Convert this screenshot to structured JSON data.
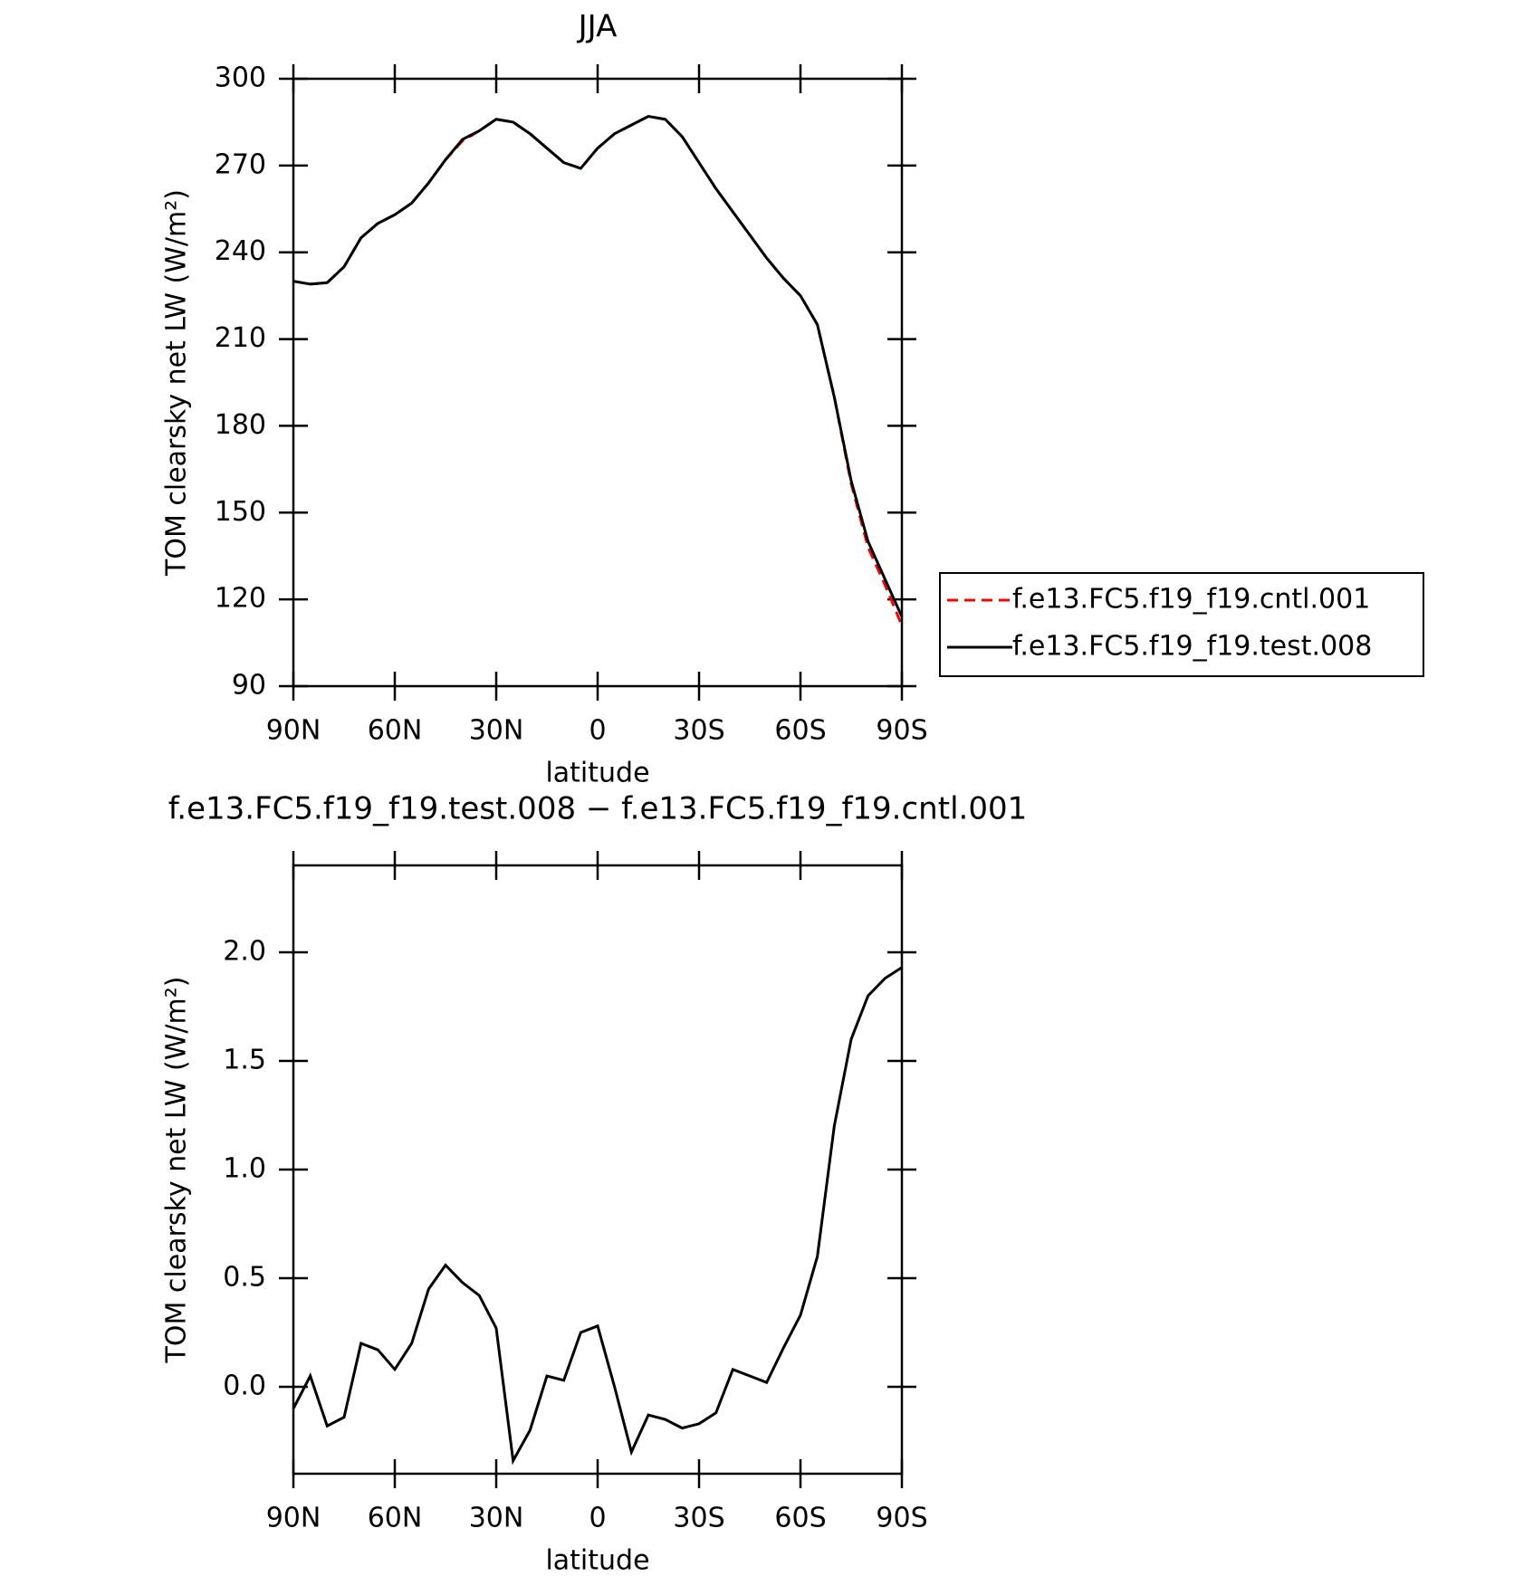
{
  "chart_data": [
    {
      "type": "line",
      "title": "JJA",
      "xlabel": "latitude",
      "ylabel": "TOM clearsky net LW (W/m²)",
      "x": [
        90,
        85,
        80,
        75,
        70,
        65,
        60,
        55,
        50,
        45,
        40,
        35,
        30,
        25,
        20,
        15,
        10,
        5,
        0,
        -5,
        -10,
        -15,
        -20,
        -25,
        -30,
        -35,
        -40,
        -45,
        -50,
        -55,
        -60,
        -65,
        -70,
        -75,
        -80,
        -85,
        -90
      ],
      "xlim": [
        90,
        -90
      ],
      "xticks": [
        {
          "value": 90,
          "label": "90N"
        },
        {
          "value": 60,
          "label": "60N"
        },
        {
          "value": 30,
          "label": "30N"
        },
        0,
        {
          "value": -30,
          "label": "30S"
        },
        {
          "value": -60,
          "label": "60S"
        },
        {
          "value": -90,
          "label": "90S"
        }
      ],
      "ylim": [
        90,
        300
      ],
      "yticks": [
        90,
        120,
        150,
        180,
        210,
        240,
        270,
        300
      ],
      "legend": "outside-right",
      "series": [
        {
          "name": "f.e13.FC5.f19_f19.cntl.001",
          "color": "#ff0000",
          "line_style": "dashed",
          "values": [
            230,
            229,
            229.5,
            235,
            245,
            250,
            253,
            257,
            264,
            272,
            278.5,
            282,
            286,
            285,
            281,
            276,
            271,
            269,
            276,
            281,
            284,
            287,
            286,
            280,
            271,
            262,
            254,
            246,
            238,
            231,
            225,
            215,
            190,
            160,
            138,
            125,
            111
          ]
        },
        {
          "name": "f.e13.FC5.f19_f19.test.008",
          "color": "#000000",
          "line_style": "solid",
          "values": [
            230,
            229,
            229.5,
            235,
            245,
            250,
            253,
            257,
            264,
            272,
            279,
            282,
            286,
            285,
            281,
            276,
            271,
            269,
            276,
            281,
            284,
            287,
            286,
            280,
            271,
            262,
            254,
            246,
            238,
            231,
            225,
            215,
            190,
            161,
            140,
            127,
            114
          ]
        }
      ]
    },
    {
      "type": "line",
      "title": "f.e13.FC5.f19_f19.test.008 − f.e13.FC5.f19_f19.cntl.001",
      "xlabel": "latitude",
      "ylabel": "TOM clearsky net LW (W/m²)",
      "x": [
        90,
        85,
        80,
        75,
        70,
        65,
        60,
        55,
        50,
        45,
        40,
        35,
        30,
        25,
        20,
        15,
        10,
        5,
        0,
        -5,
        -10,
        -15,
        -20,
        -25,
        -30,
        -35,
        -40,
        -45,
        -50,
        -55,
        -60,
        -65,
        -70,
        -75,
        -80,
        -85,
        -90
      ],
      "xlim": [
        90,
        -90
      ],
      "xticks": [
        {
          "value": 90,
          "label": "90N"
        },
        {
          "value": 60,
          "label": "60N"
        },
        {
          "value": 30,
          "label": "30N"
        },
        0,
        {
          "value": -30,
          "label": "30S"
        },
        {
          "value": -60,
          "label": "60S"
        },
        {
          "value": -90,
          "label": "90S"
        }
      ],
      "ylim": [
        -0.4,
        2.4
      ],
      "yticks": [
        {
          "value": 0,
          "label": "0.0"
        },
        0.5,
        {
          "value": 1,
          "label": "1.0"
        },
        1.5,
        {
          "value": 2,
          "label": "2.0"
        }
      ],
      "series": [
        {
          "color": "#000000",
          "line_style": "solid",
          "values": [
            -0.1,
            0.05,
            -0.18,
            -0.14,
            0.2,
            0.17,
            0.08,
            0.2,
            0.45,
            0.56,
            0.48,
            0.42,
            0.27,
            -0.34,
            -0.2,
            0.05,
            0.03,
            0.25,
            0.28,
            0.0,
            -0.3,
            -0.13,
            -0.15,
            -0.19,
            -0.17,
            -0.12,
            0.08,
            0.05,
            0.02,
            0.18,
            0.33,
            0.6,
            1.2,
            1.6,
            1.8,
            1.88,
            1.93
          ]
        }
      ]
    }
  ]
}
